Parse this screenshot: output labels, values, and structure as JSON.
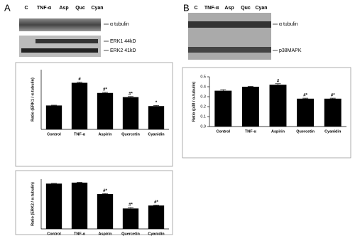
{
  "panels": [
    {
      "label": "A",
      "lanes": [
        "C",
        "TNF-α",
        "Asp",
        "Quc",
        "Cyan"
      ],
      "bands": [
        "α tubulin",
        "ERK1 44kD",
        "ERK2 41kD"
      ]
    },
    {
      "label": "B",
      "lanes": [
        "C",
        "TNF-α",
        "Asp",
        "Quc",
        "Cyan"
      ],
      "bands": [
        "α tubulin",
        "p38MAPK"
      ]
    }
  ],
  "chart_data": [
    {
      "type": "bar",
      "y_label": "Ratio (ERK1 / α-tubulin)",
      "categories": [
        "Control",
        "TNF-α",
        "Aspirin",
        "Quercetin",
        "Cyanidin"
      ],
      "values": [
        0.4,
        0.78,
        0.61,
        0.54,
        0.39
      ],
      "errors": [
        0.005,
        0.01,
        0.01,
        0.01,
        0.01
      ],
      "annotations": [
        null,
        "#",
        "#*",
        "#*",
        "*"
      ],
      "color": "#000000",
      "ylim": [
        0,
        1
      ]
    },
    {
      "type": "bar",
      "y_label": "Ratio (ERK2 / α-tubulin)",
      "categories": [
        "Control",
        "TNF-α",
        "Aspirin",
        "Quercetin",
        "Cyanidin"
      ],
      "values": [
        0.91,
        0.93,
        0.7,
        0.41,
        0.47
      ],
      "errors": [
        0.005,
        0.005,
        0.01,
        0.02,
        0.01
      ],
      "annotations": [
        null,
        null,
        "#*",
        "#*",
        "#*"
      ],
      "color": "#000000",
      "ylim": [
        0,
        1
      ]
    },
    {
      "type": "bar",
      "y_label": "Ratio (p38 / α-tubulin)",
      "categories": [
        "Control",
        "TNF-α",
        "Aspirin",
        "Quercetin",
        "Cyanidin"
      ],
      "values": [
        0.36,
        0.4,
        0.42,
        0.28,
        0.28
      ],
      "errors": [
        0.01,
        0.003,
        0.01,
        0.005,
        0.005
      ],
      "annotations": [
        null,
        null,
        "#",
        "#*",
        "#*"
      ],
      "color": "#000000",
      "ylim": [
        0,
        0.5
      ],
      "yticks": [
        {
          "value": 0,
          "label": "0.0"
        },
        0.1,
        0.2,
        0.3,
        0.4,
        0.5
      ]
    }
  ]
}
